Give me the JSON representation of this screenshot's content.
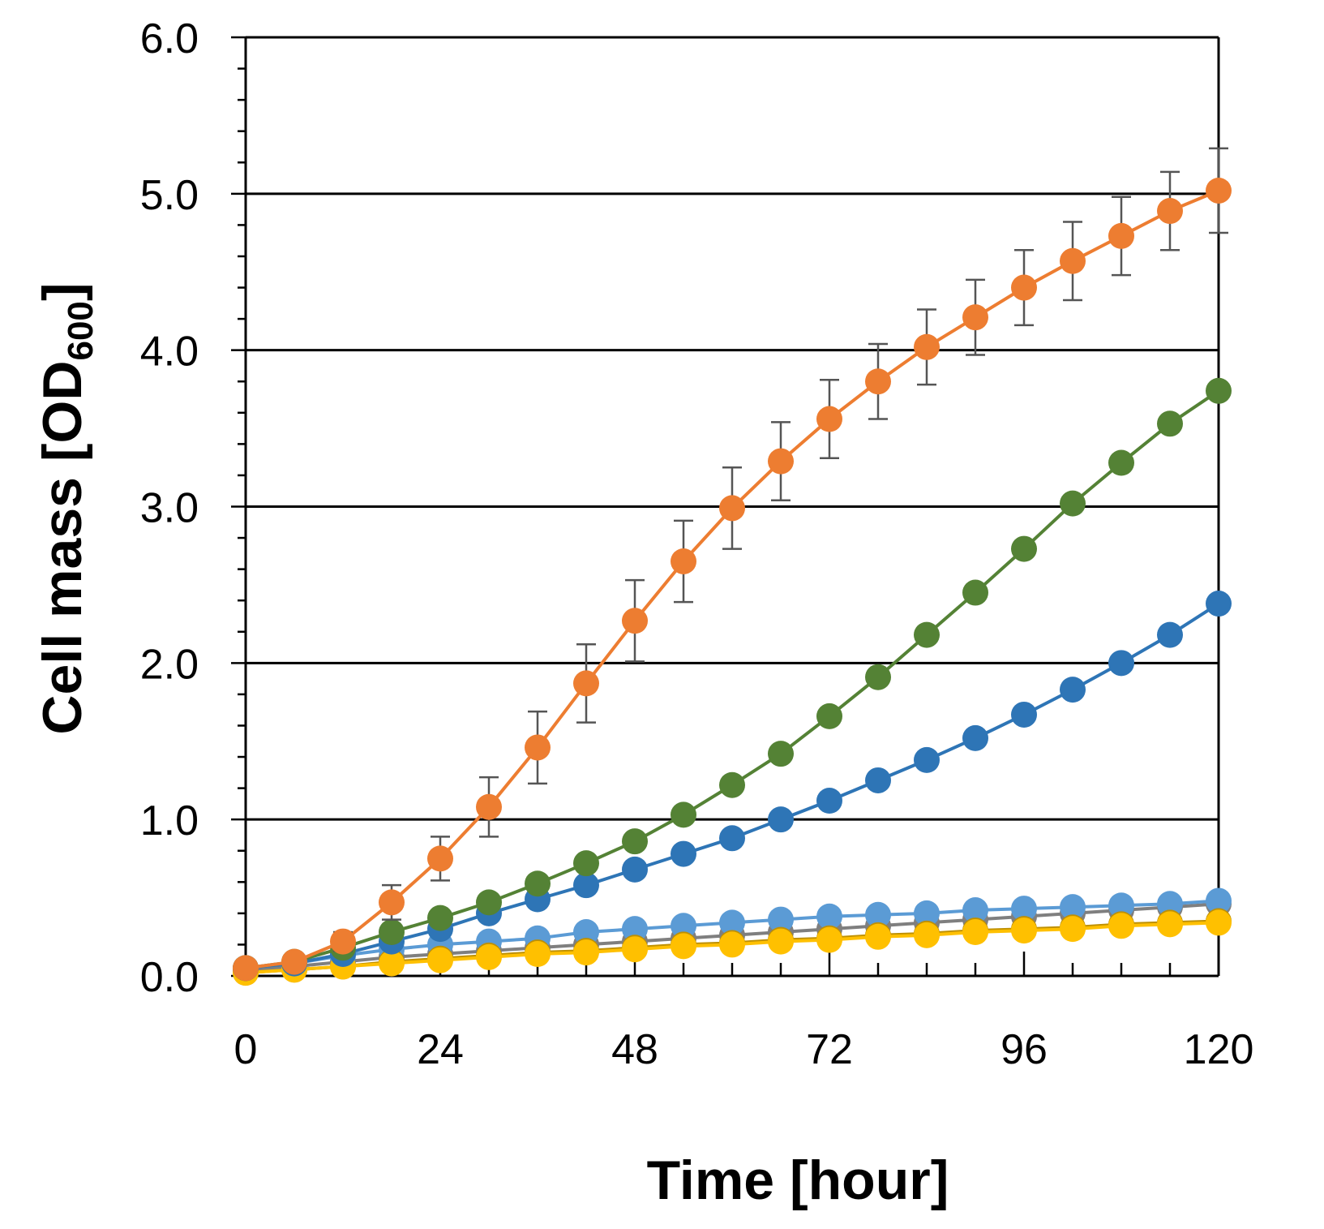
{
  "chart_data": {
    "type": "line",
    "title": "",
    "xlabel": "Time [hour]",
    "ylabel": {
      "main": "Cell mass [OD",
      "subscript": "600",
      "close": "]"
    },
    "xlim": [
      0,
      120
    ],
    "ylim": [
      0,
      6
    ],
    "x_ticks": [
      0,
      24,
      48,
      72,
      96,
      120
    ],
    "x_tick_labels": [
      "0",
      "24",
      "48",
      "72",
      "96",
      "120"
    ],
    "y_ticks": [
      0,
      1,
      2,
      3,
      4,
      5,
      6
    ],
    "y_tick_labels": [
      "0.0",
      "1.0",
      "2.0",
      "3.0",
      "4.0",
      "5.0",
      "6.0"
    ],
    "y_minor_step": 0.2,
    "x_minor_step": 6,
    "gridlines_y": [
      1,
      2,
      3,
      4,
      5
    ],
    "x": [
      0,
      6,
      12,
      18,
      24,
      30,
      36,
      42,
      48,
      54,
      60,
      66,
      72,
      78,
      84,
      90,
      96,
      102,
      108,
      114,
      120
    ],
    "legend": "none",
    "series": [
      {
        "name": "series-gray",
        "color": "#7f7f7f",
        "values": [
          0.03,
          0.06,
          0.09,
          0.12,
          0.14,
          0.16,
          0.18,
          0.2,
          0.22,
          0.24,
          0.26,
          0.28,
          0.3,
          0.32,
          0.34,
          0.36,
          0.38,
          0.4,
          0.42,
          0.44,
          0.46
        ]
      },
      {
        "name": "series-light-blue",
        "color": "#5b9bd5",
        "values": [
          0.05,
          0.08,
          0.13,
          0.17,
          0.2,
          0.22,
          0.24,
          0.28,
          0.3,
          0.32,
          0.34,
          0.36,
          0.38,
          0.39,
          0.4,
          0.42,
          0.43,
          0.44,
          0.45,
          0.46,
          0.48
        ]
      },
      {
        "name": "series-gold",
        "color": "#bf9000",
        "values": [
          0.02,
          0.04,
          0.06,
          0.09,
          0.11,
          0.13,
          0.15,
          0.16,
          0.18,
          0.2,
          0.21,
          0.23,
          0.24,
          0.26,
          0.27,
          0.29,
          0.3,
          0.31,
          0.33,
          0.34,
          0.35
        ]
      },
      {
        "name": "series-yellow",
        "color": "#ffc000",
        "values": [
          0.02,
          0.04,
          0.06,
          0.08,
          0.1,
          0.12,
          0.14,
          0.15,
          0.17,
          0.19,
          0.2,
          0.22,
          0.23,
          0.25,
          0.26,
          0.28,
          0.29,
          0.3,
          0.32,
          0.33,
          0.34
        ]
      },
      {
        "name": "series-blue",
        "color": "#2e75b6",
        "values": [
          0.05,
          0.08,
          0.14,
          0.22,
          0.3,
          0.4,
          0.49,
          0.58,
          0.68,
          0.78,
          0.88,
          1.0,
          1.12,
          1.25,
          1.38,
          1.52,
          1.67,
          1.83,
          2.0,
          2.18,
          2.38
        ]
      },
      {
        "name": "series-green",
        "color": "#548235",
        "values": [
          0.05,
          0.09,
          0.18,
          0.28,
          0.37,
          0.47,
          0.59,
          0.72,
          0.86,
          1.03,
          1.22,
          1.42,
          1.66,
          1.91,
          2.18,
          2.45,
          2.73,
          3.02,
          3.28,
          3.53,
          3.74
        ]
      },
      {
        "name": "series-orange",
        "color": "#ed7d31",
        "values": [
          0.05,
          0.09,
          0.22,
          0.47,
          0.75,
          1.08,
          1.46,
          1.87,
          2.27,
          2.65,
          2.99,
          3.29,
          3.56,
          3.8,
          4.02,
          4.21,
          4.4,
          4.57,
          4.73,
          4.89,
          5.02
        ],
        "error": [
          0.02,
          0.03,
          0.06,
          0.11,
          0.14,
          0.19,
          0.23,
          0.25,
          0.26,
          0.26,
          0.26,
          0.25,
          0.25,
          0.24,
          0.24,
          0.24,
          0.24,
          0.25,
          0.25,
          0.25,
          0.27
        ]
      }
    ]
  }
}
